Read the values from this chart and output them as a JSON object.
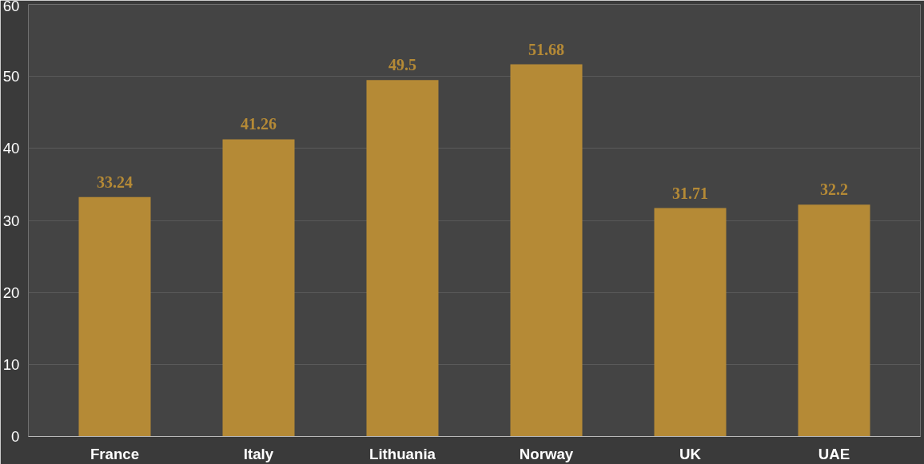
{
  "chart_data": {
    "type": "bar",
    "categories": [
      "France",
      "Italy",
      "Lithuania",
      "Norway",
      "UK",
      "UAE"
    ],
    "values": [
      33.24,
      41.26,
      49.5,
      51.68,
      31.71,
      32.2
    ],
    "color": "#b58a36",
    "ylim": [
      0,
      60
    ],
    "yticks": [
      0,
      10,
      20,
      30,
      40,
      50,
      60
    ],
    "grid": "y",
    "data_labels": true
  }
}
